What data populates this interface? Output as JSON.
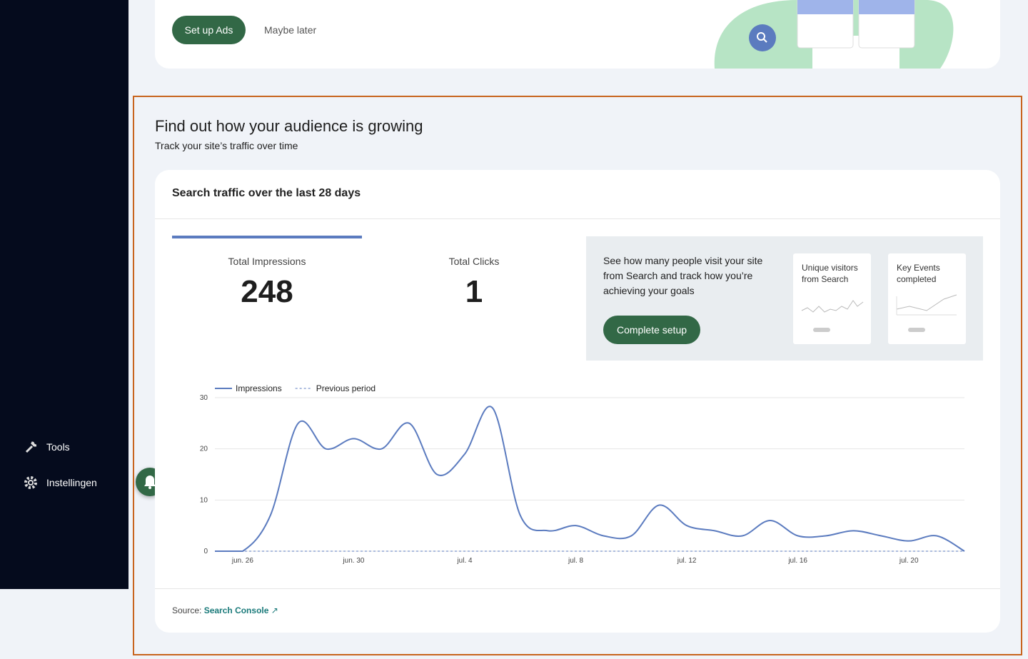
{
  "sidebar": {
    "items": [
      "Tools",
      "Instellingen"
    ]
  },
  "ads_banner": {
    "primary_button": "Set up Ads",
    "secondary_button": "Maybe later"
  },
  "section": {
    "title": "Find out how your audience is growing",
    "subtitle": "Track your site’s traffic over time"
  },
  "card": {
    "title": "Search traffic over the last 28 days",
    "metrics": [
      {
        "label": "Total Impressions",
        "value": 248
      },
      {
        "label": "Total Clicks",
        "value": 1
      }
    ],
    "promo": {
      "text": "See how many people visit your site from Search and track how you’re achieving your goals",
      "button": "Complete setup",
      "tiles": [
        "Unique visitors from Search",
        "Key Events completed"
      ]
    },
    "source_label": "Source:",
    "source_link": "Search Console"
  },
  "chart_data": {
    "type": "line",
    "categories": [
      null,
      "jun. 26",
      null,
      null,
      null,
      "jun. 30",
      null,
      null,
      null,
      "jul. 4",
      null,
      null,
      null,
      "jul. 8",
      null,
      null,
      null,
      "jul. 12",
      null,
      null,
      null,
      "jul. 16",
      null,
      null,
      null,
      "jul. 20",
      null,
      null
    ],
    "series": [
      {
        "name": "Impressions",
        "color": "#5b7bbf",
        "dashed": false,
        "values": [
          0,
          0,
          7,
          25,
          20,
          22,
          20,
          25,
          15,
          19,
          28,
          7,
          4,
          5,
          3,
          3,
          9,
          5,
          4,
          3,
          6,
          3,
          3,
          4,
          3,
          2,
          3,
          0
        ]
      },
      {
        "name": "Previous period",
        "color": "#5b7bbf",
        "dashed": true,
        "values": [
          0,
          0,
          0,
          0,
          0,
          0,
          0,
          0,
          0,
          0,
          0,
          0,
          0,
          0,
          0,
          0,
          0,
          0,
          0,
          0,
          0,
          0,
          0,
          0,
          0,
          0,
          0,
          0
        ]
      }
    ],
    "ylim": [
      0,
      30
    ],
    "yticks": [
      0,
      10,
      20,
      30
    ],
    "grid": true
  }
}
